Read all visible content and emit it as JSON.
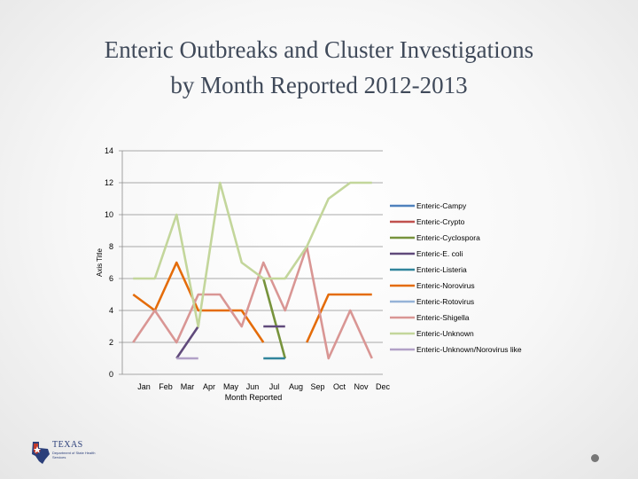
{
  "slide": {
    "title_line1": "Enteric Outbreaks and Cluster Investigations",
    "title_line2": "by Month Reported 2012-2013",
    "logo_text": "TEXAS",
    "logo_sub": "Department of State Health Services"
  },
  "chart_data": {
    "type": "line",
    "title": "",
    "xlabel": "Month Reported",
    "ylabel": "Axis Title",
    "categories": [
      "Jan",
      "Feb",
      "Mar",
      "Apr",
      "May",
      "Jun",
      "Jul",
      "Aug",
      "Sep",
      "Oct",
      "Nov",
      "Dec"
    ],
    "ylim": [
      0,
      14
    ],
    "yticks": [
      0,
      2,
      4,
      6,
      8,
      10,
      12,
      14
    ],
    "grid": true,
    "legend_position": "right",
    "series": [
      {
        "name": "Enteric-Campy",
        "color": "#4f81bd",
        "values": [
          null,
          null,
          null,
          null,
          null,
          null,
          null,
          null,
          null,
          null,
          null,
          null
        ]
      },
      {
        "name": "Enteric-Crypto",
        "color": "#c0504d",
        "values": [
          null,
          null,
          null,
          null,
          null,
          null,
          null,
          null,
          null,
          null,
          null,
          null
        ]
      },
      {
        "name": "Enteric-Cyclospora",
        "color": "#77933c",
        "values": [
          null,
          null,
          null,
          null,
          null,
          null,
          6,
          1,
          null,
          null,
          null,
          null
        ]
      },
      {
        "name": "Enteric-E. coli",
        "color": "#604a7b",
        "values": [
          null,
          null,
          1,
          3,
          null,
          null,
          3,
          3,
          null,
          null,
          null,
          null
        ]
      },
      {
        "name": "Enteric-Listeria",
        "color": "#31859c",
        "values": [
          null,
          null,
          null,
          null,
          null,
          null,
          1,
          1,
          null,
          null,
          null,
          null
        ]
      },
      {
        "name": "Enteric-Norovirus",
        "color": "#e46c0a",
        "values": [
          5,
          4,
          7,
          4,
          4,
          4,
          2,
          null,
          2,
          5,
          5,
          5
        ]
      },
      {
        "name": "Enteric-Rotovirus",
        "color": "#95b3d7",
        "values": [
          null,
          null,
          null,
          null,
          null,
          null,
          null,
          null,
          null,
          null,
          null,
          null
        ]
      },
      {
        "name": "Enteric-Shigella",
        "color": "#d99694",
        "values": [
          2,
          4,
          2,
          5,
          5,
          3,
          7,
          4,
          8,
          1,
          4,
          1
        ]
      },
      {
        "name": "Enteric-Unknown",
        "color": "#c3d69b",
        "values": [
          6,
          6,
          10,
          3,
          12,
          7,
          6,
          6,
          8,
          11,
          12,
          12
        ]
      },
      {
        "name": "Enteric-Unknown/Norovirus like",
        "color": "#b2a1c7",
        "values": [
          null,
          null,
          1,
          1,
          null,
          null,
          null,
          null,
          null,
          null,
          null,
          null
        ]
      }
    ]
  }
}
